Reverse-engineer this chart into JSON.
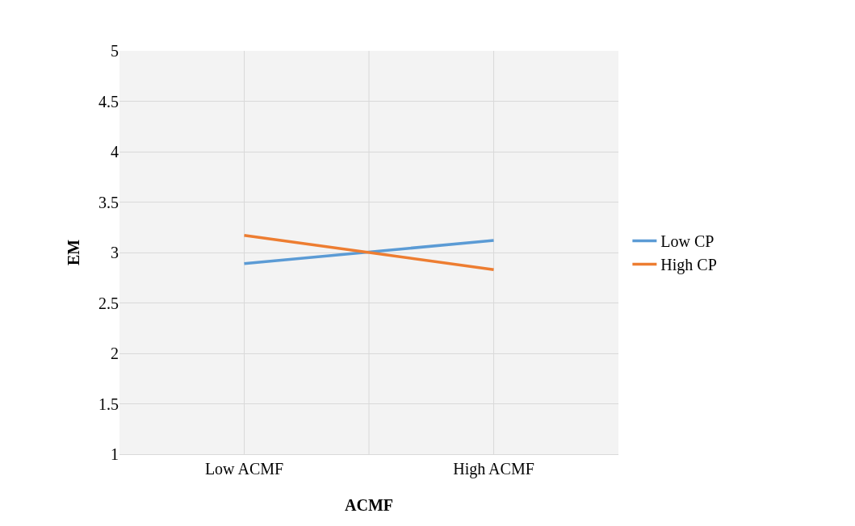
{
  "chart_data": {
    "type": "line",
    "xlabel": "ACMF",
    "ylabel": "EM",
    "categories": [
      "Low ACMF",
      "High ACMF"
    ],
    "series": [
      {
        "name": "Low CP",
        "color": "#5b9bd5",
        "values": [
          2.89,
          3.12
        ]
      },
      {
        "name": "High CP",
        "color": "#ed7d31",
        "values": [
          3.17,
          2.83
        ]
      }
    ],
    "ylim": [
      1,
      5
    ],
    "yticks": [
      1,
      1.5,
      2,
      2.5,
      3,
      3.5,
      4,
      4.5,
      5
    ],
    "grid": true,
    "legend": "right",
    "marker": "none",
    "line_style": "solid"
  }
}
